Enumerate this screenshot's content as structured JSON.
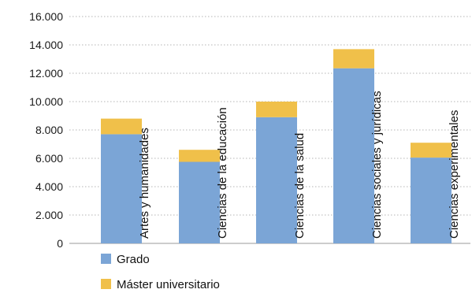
{
  "chart_data": {
    "type": "bar",
    "stacked": true,
    "categories": [
      "Artes y humanidades",
      "Ciencias de la educación",
      "Ciencias de la salud",
      "Ciencias sociales y jurídicas",
      "Ciencias experimentales"
    ],
    "series": [
      {
        "name": "Grado",
        "color": "#7BA5D6",
        "values": [
          7700,
          5750,
          8900,
          12350,
          6050
        ]
      },
      {
        "name": "Máster universitario",
        "color": "#F0C04A",
        "values": [
          1100,
          850,
          1100,
          1350,
          1050
        ]
      }
    ],
    "y_ticks": [
      "0",
      "2.000",
      "4.000",
      "6.000",
      "8.000",
      "10.000",
      "12.000",
      "14.000",
      "16.000"
    ],
    "ylim": [
      0,
      16000
    ],
    "grid": true,
    "legend_position": "bottom-left",
    "title": "",
    "xlabel": "",
    "ylabel": ""
  }
}
